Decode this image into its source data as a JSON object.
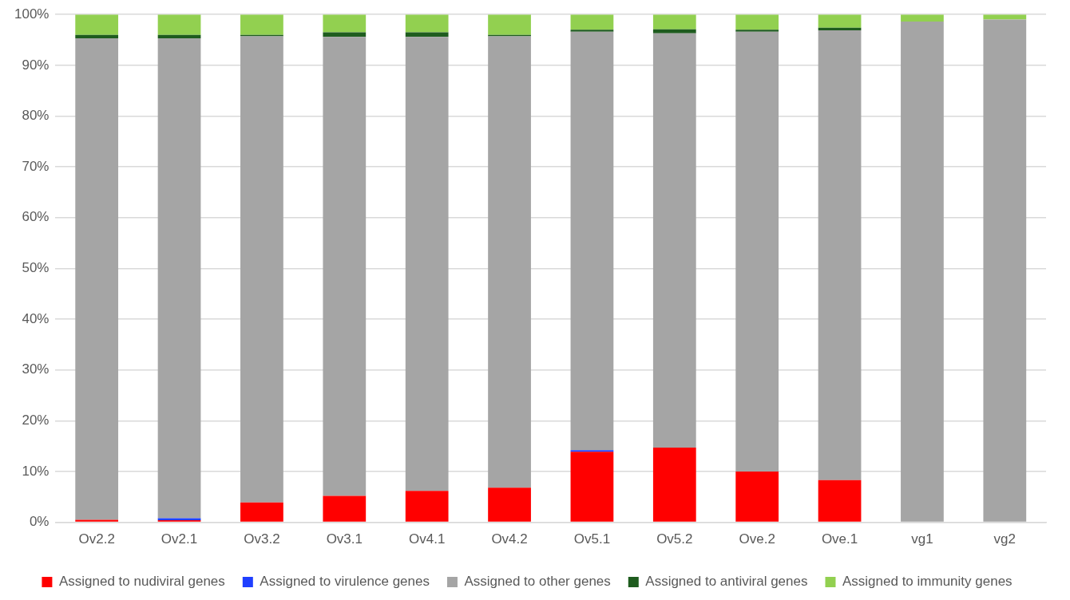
{
  "chart_data": {
    "type": "bar",
    "stacked": true,
    "categories": [
      "Ov2.2",
      "Ov2.1",
      "Ov3.2",
      "Ov3.1",
      "Ov4.1",
      "Ov4.2",
      "Ov5.1",
      "Ov5.2",
      "Ove.2",
      "Ove.1",
      "vg1",
      "vg2"
    ],
    "series": [
      {
        "name": "Assigned to nudiviral genes",
        "color": "#ff0000",
        "values": [
          0.5,
          0.4,
          3.9,
          5.2,
          6.2,
          6.8,
          13.9,
          14.7,
          10.0,
          8.3,
          0,
          0
        ]
      },
      {
        "name": "Assigned to virulence genes",
        "color": "#1f3fff",
        "values": [
          0,
          0.4,
          0,
          0,
          0,
          0,
          0.3,
          0,
          0,
          0,
          0,
          0
        ]
      },
      {
        "name": "Assigned to other genes",
        "color": "#a5a5a5",
        "values": [
          94.8,
          94.5,
          91.8,
          90.4,
          89.4,
          88.9,
          82.4,
          81.6,
          86.6,
          88.6,
          98.6,
          99.0
        ]
      },
      {
        "name": "Assigned to antiviral genes",
        "color": "#1e5c1e",
        "values": [
          0.7,
          0.7,
          0.3,
          0.9,
          0.9,
          0.3,
          0.4,
          0.8,
          0.4,
          0.5,
          0,
          0
        ]
      },
      {
        "name": "Assigned to immunity genes",
        "color": "#92d050",
        "values": [
          4.0,
          4.0,
          4.0,
          3.5,
          3.5,
          4.0,
          3.0,
          2.9,
          3.0,
          2.6,
          1.4,
          1.0
        ]
      }
    ],
    "ylim": [
      0,
      100
    ],
    "yticks": [
      {
        "value": 0,
        "label": "0%"
      },
      {
        "value": 10,
        "label": "10%"
      },
      {
        "value": 20,
        "label": "20%"
      },
      {
        "value": 30,
        "label": "30%"
      },
      {
        "value": 40,
        "label": "40%"
      },
      {
        "value": 50,
        "label": "50%"
      },
      {
        "value": 60,
        "label": "60%"
      },
      {
        "value": 70,
        "label": "70%"
      },
      {
        "value": 80,
        "label": "80%"
      },
      {
        "value": 90,
        "label": "90%"
      },
      {
        "value": 100,
        "label": "100%"
      }
    ],
    "grid": "y",
    "legend": "bottom"
  }
}
